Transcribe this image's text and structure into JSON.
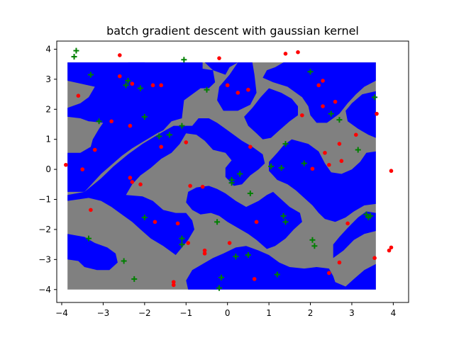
{
  "chart_data": {
    "type": "scatter",
    "title": "batch gradient descent with gaussian kernel",
    "xlabel": "",
    "ylabel": "",
    "xlim": [
      -4.12,
      4.37
    ],
    "ylim": [
      -4.43,
      4.27
    ],
    "xticks": [
      -4,
      -3,
      -2,
      -1,
      0,
      1,
      2,
      3,
      4
    ],
    "yticks": [
      -4,
      -3,
      -2,
      -1,
      0,
      1,
      2,
      3,
      4
    ],
    "grid": false,
    "colors": {
      "region_negative": "#0000ff",
      "region_positive": "#808080",
      "class_red": "#ff0000",
      "class_green": "#008000"
    },
    "decision_region": {
      "x_range": [
        -3.86,
        3.58
      ],
      "y_range": [
        -4.0,
        3.56
      ],
      "grid_step": 0.2,
      "note_blue_cells": []
    },
    "series": [
      {
        "marker": "circle",
        "color": "#ff0000",
        "points": [
          [
            -2.6,
            3.8
          ],
          [
            -0.2,
            3.7
          ],
          [
            1.4,
            3.85
          ],
          [
            1.7,
            3.9
          ],
          [
            2.3,
            2.95
          ],
          [
            -3.6,
            2.45
          ],
          [
            -2.6,
            3.1
          ],
          [
            -2.3,
            2.85
          ],
          [
            -1.8,
            2.8
          ],
          [
            -1.6,
            2.8
          ],
          [
            0.0,
            2.8
          ],
          [
            0.25,
            2.55
          ],
          [
            0.5,
            2.65
          ],
          [
            2.2,
            2.8
          ],
          [
            2.3,
            2.1
          ],
          [
            2.6,
            2.25
          ],
          [
            1.8,
            1.8
          ],
          [
            3.6,
            1.85
          ],
          [
            -2.8,
            1.6
          ],
          [
            -2.35,
            1.45
          ],
          [
            3.1,
            1.15
          ],
          [
            -1.6,
            0.75
          ],
          [
            -1.0,
            0.9
          ],
          [
            0.55,
            0.75
          ],
          [
            2.7,
            0.85
          ],
          [
            2.35,
            0.55
          ],
          [
            -3.2,
            0.65
          ],
          [
            -3.9,
            0.15
          ],
          [
            -3.5,
            0.0
          ],
          [
            2.45,
            0.15
          ],
          [
            2.75,
            0.28
          ],
          [
            2.05,
            0.02
          ],
          [
            3.95,
            -0.05
          ],
          [
            -2.35,
            -0.28
          ],
          [
            -2.3,
            -0.42
          ],
          [
            -2.1,
            -0.5
          ],
          [
            -0.9,
            -0.55
          ],
          [
            -0.6,
            -0.58
          ],
          [
            -3.3,
            -1.35
          ],
          [
            -1.75,
            -1.75
          ],
          [
            -1.2,
            -1.8
          ],
          [
            -0.95,
            -2.45
          ],
          [
            0.7,
            -1.75
          ],
          [
            2.9,
            -1.8
          ],
          [
            0.05,
            -2.45
          ],
          [
            -0.55,
            -2.7
          ],
          [
            -0.55,
            -2.8
          ],
          [
            3.95,
            -2.6
          ],
          [
            3.9,
            -2.7
          ],
          [
            3.55,
            -2.95
          ],
          [
            2.7,
            -3.1
          ],
          [
            2.45,
            -3.45
          ],
          [
            0.65,
            -3.65
          ],
          [
            -1.3,
            -3.75
          ],
          [
            -1.3,
            -3.85
          ]
        ]
      },
      {
        "marker": "plus",
        "color": "#008000",
        "points": [
          [
            -3.65,
            3.95
          ],
          [
            -3.7,
            3.75
          ],
          [
            -1.05,
            3.65
          ],
          [
            -3.3,
            3.15
          ],
          [
            -2.4,
            2.95
          ],
          [
            -2.45,
            2.8
          ],
          [
            -2.1,
            2.7
          ],
          [
            -0.5,
            2.65
          ],
          [
            2.0,
            3.25
          ],
          [
            3.55,
            2.4
          ],
          [
            2.5,
            1.85
          ],
          [
            2.7,
            1.65
          ],
          [
            -3.1,
            1.6
          ],
          [
            -2.0,
            1.75
          ],
          [
            -1.65,
            1.1
          ],
          [
            -1.4,
            1.15
          ],
          [
            -1.1,
            1.45
          ],
          [
            1.4,
            0.85
          ],
          [
            3.15,
            0.65
          ],
          [
            1.05,
            0.1
          ],
          [
            1.3,
            0.05
          ],
          [
            1.85,
            0.2
          ],
          [
            0.3,
            -0.15
          ],
          [
            0.1,
            -0.35
          ],
          [
            0.1,
            -0.45
          ],
          [
            0.55,
            -0.8
          ],
          [
            -2.0,
            -1.6
          ],
          [
            -0.25,
            -1.75
          ],
          [
            1.35,
            -1.55
          ],
          [
            1.4,
            -1.75
          ],
          [
            3.35,
            -1.5
          ],
          [
            3.45,
            -1.55
          ],
          [
            3.4,
            -1.6
          ],
          [
            2.05,
            -2.35
          ],
          [
            2.1,
            -2.55
          ],
          [
            -3.35,
            -2.3
          ],
          [
            -1.1,
            -2.3
          ],
          [
            -1.1,
            -2.5
          ],
          [
            0.2,
            -2.9
          ],
          [
            0.5,
            -2.85
          ],
          [
            -2.5,
            -3.05
          ],
          [
            -2.25,
            -3.65
          ],
          [
            1.2,
            -3.5
          ],
          [
            -0.15,
            -3.6
          ],
          [
            -0.2,
            -3.95
          ]
        ]
      }
    ]
  }
}
